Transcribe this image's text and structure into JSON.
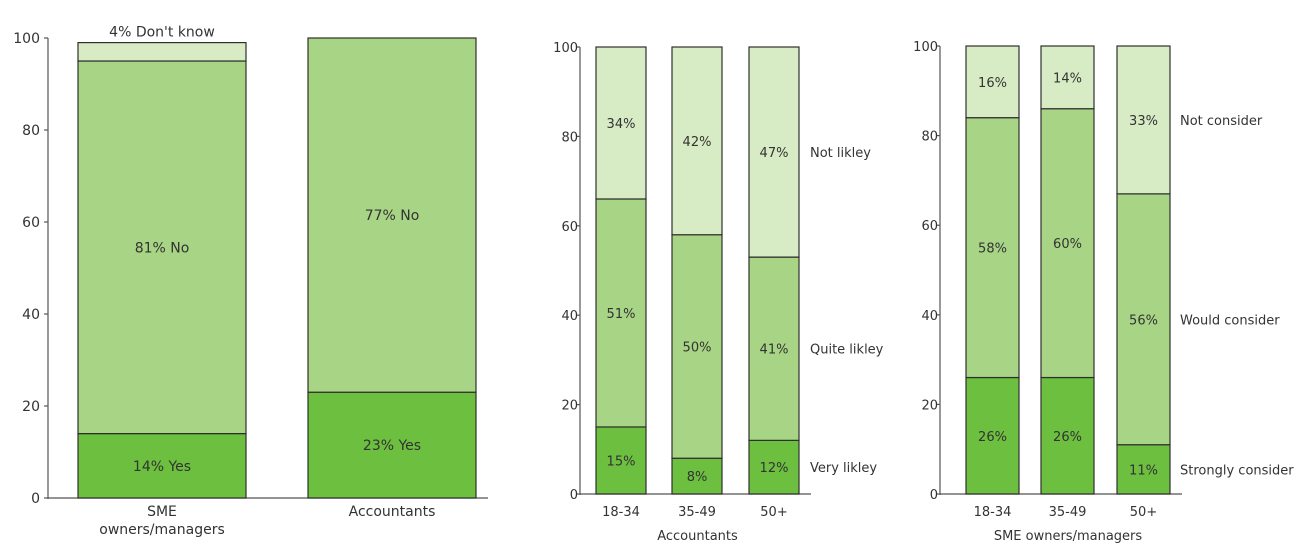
{
  "chart_data": [
    {
      "type": "bar",
      "stacked": true,
      "categories": [
        "SME owners/managers",
        "Accountants"
      ],
      "category_lines": [
        [
          "SME",
          "owners/managers"
        ],
        [
          "Accountants"
        ]
      ],
      "ylim": [
        0,
        100
      ],
      "yticks": [
        "0",
        "20",
        "40",
        "60",
        "80",
        "100"
      ],
      "xlabel": "",
      "ylabel": "",
      "series": [
        {
          "name": "Yes",
          "values": [
            14,
            23
          ],
          "labels": [
            "14% Yes",
            "23% Yes"
          ],
          "color": "#6cbf3f"
        },
        {
          "name": "No",
          "values": [
            81,
            77
          ],
          "labels": [
            "81% No",
            "77% No"
          ],
          "color": "#a8d585"
        },
        {
          "name": "Don't know",
          "values": [
            4,
            0
          ],
          "labels": [
            "4% Don't know",
            ""
          ],
          "color": "#d7ecc4"
        }
      ],
      "legend_position": "none",
      "grid": false
    },
    {
      "type": "bar",
      "stacked": true,
      "categories": [
        "18-34",
        "35-49",
        "50+"
      ],
      "ylim": [
        0,
        100
      ],
      "yticks": [
        "0",
        "20",
        "40",
        "60",
        "80",
        "100"
      ],
      "xlabel": "Accountants",
      "ylabel": "",
      "series": [
        {
          "name": "Very likley",
          "values": [
            15,
            8,
            12
          ],
          "labels": [
            "15%",
            "8%",
            "12%"
          ],
          "color": "#6cbf3f"
        },
        {
          "name": "Quite likley",
          "values": [
            51,
            50,
            41
          ],
          "labels": [
            "51%",
            "50%",
            "41%"
          ],
          "color": "#a8d585"
        },
        {
          "name": "Not likley",
          "values": [
            34,
            42,
            47
          ],
          "labels": [
            "34%",
            "42%",
            "47%"
          ],
          "color": "#d7ecc4"
        }
      ],
      "legend_position": "right",
      "grid": false
    },
    {
      "type": "bar",
      "stacked": true,
      "categories": [
        "18-34",
        "35-49",
        "50+"
      ],
      "ylim": [
        0,
        100
      ],
      "yticks": [
        "0",
        "20",
        "40",
        "60",
        "80",
        "100"
      ],
      "xlabel": "SME owners/managers",
      "ylabel": "",
      "series": [
        {
          "name": "Strongly consider",
          "values": [
            26,
            26,
            11
          ],
          "labels": [
            "26%",
            "26%",
            "11%"
          ],
          "color": "#6cbf3f"
        },
        {
          "name": "Would consider",
          "values": [
            58,
            60,
            56
          ],
          "labels": [
            "58%",
            "60%",
            "56%"
          ],
          "color": "#a8d585"
        },
        {
          "name": "Not consider",
          "values": [
            16,
            14,
            33
          ],
          "labels": [
            "16%",
            "14%",
            "33%"
          ],
          "color": "#d7ecc4"
        }
      ],
      "legend_position": "right",
      "grid": false
    }
  ]
}
